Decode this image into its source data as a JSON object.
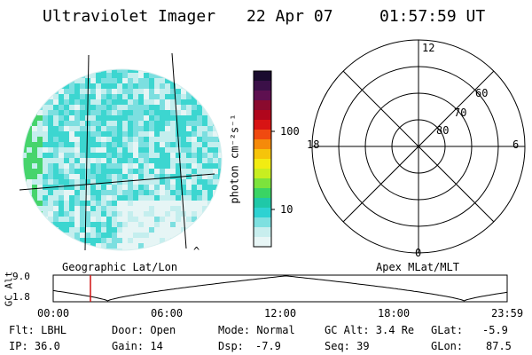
{
  "header": {
    "title": "Ultraviolet Imager",
    "date": "22 Apr 07",
    "time": "01:57:59 UT"
  },
  "colorbar": {
    "unit_label": "photon cm⁻²s⁻¹",
    "ticks": [
      "100",
      "10"
    ],
    "colors": [
      "#1a0b2e",
      "#3b1048",
      "#5e1050",
      "#8a0a2e",
      "#b0061c",
      "#d81414",
      "#f04a10",
      "#f58a0a",
      "#f6c40a",
      "#f2ec12",
      "#c8ee20",
      "#7ce33c",
      "#3ad464",
      "#1fc8a8",
      "#2ed2d2",
      "#7ee0e0",
      "#c8eeee",
      "#e8f6f6"
    ]
  },
  "polar": {
    "mlt_labels": {
      "top": "12",
      "left": "18",
      "right": "6",
      "bottom": "0"
    },
    "mlat_labels": [
      "60",
      "70",
      "80"
    ]
  },
  "aurora_image": {
    "fill_colors": [
      "#3cd6d0",
      "#7cdfe0",
      "#c4eeee",
      "#46d46c",
      "#e6f5f5"
    ]
  },
  "timeline": {
    "axis_label": "GC Alt",
    "y_ticks": [
      "9.0",
      "1.8"
    ],
    "left_caption": "Geographic Lat/Lon",
    "right_caption": "Apex MLat/MLT",
    "x_ticks": [
      "00:00",
      "06:00",
      "12:00",
      "18:00",
      "23:59"
    ],
    "marker_color": "#d01010"
  },
  "status": {
    "row1": [
      "Flt: LBHL",
      "Door: Open",
      "Mode: Normal",
      "GC Alt: 3.4 Re",
      "GLat:",
      "-5.9"
    ],
    "row2": [
      "IP: 36.0",
      "Gain: 14",
      "Dsp:",
      "-7.9",
      "Seq: 39",
      "GLon:",
      "87.5"
    ]
  },
  "misc": {
    "caret": "^"
  }
}
